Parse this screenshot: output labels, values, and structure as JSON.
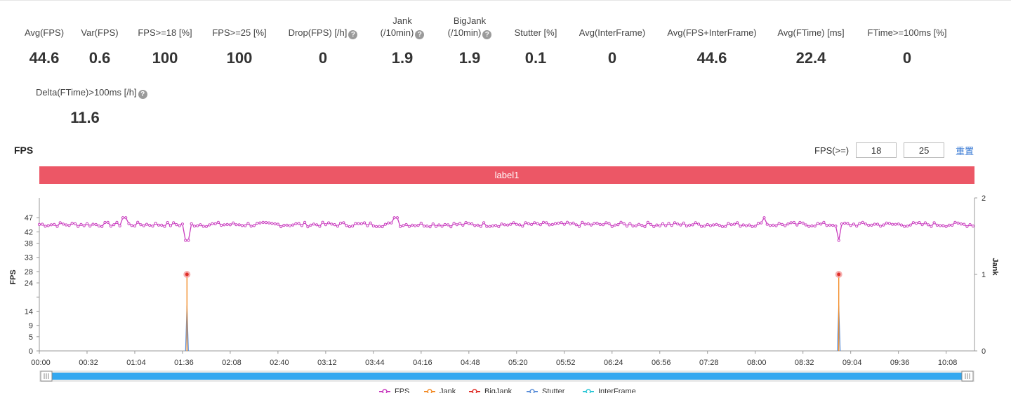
{
  "metrics": [
    {
      "label": "Avg(FPS)",
      "value": "44.6",
      "help": false
    },
    {
      "label": "Var(FPS)",
      "value": "0.6",
      "help": false
    },
    {
      "label": "FPS>=18 [%]",
      "value": "100",
      "help": false
    },
    {
      "label": "FPS>=25 [%]",
      "value": "100",
      "help": false
    },
    {
      "label": "Drop(FPS) [/h]",
      "value": "0",
      "help": true
    },
    {
      "label": "Jank",
      "label2": "(/10min)",
      "value": "1.9",
      "help": true
    },
    {
      "label": "BigJank",
      "label2": "(/10min)",
      "value": "1.9",
      "help": true
    },
    {
      "label": "Stutter [%]",
      "value": "0.1",
      "help": false
    },
    {
      "label": "Avg(InterFrame)",
      "value": "0",
      "help": false
    },
    {
      "label": "Avg(FPS+InterFrame)",
      "value": "44.6",
      "help": false
    },
    {
      "label": "Avg(FTime) [ms]",
      "value": "22.4",
      "help": false
    },
    {
      "label": "FTime>=100ms [%]",
      "value": "0",
      "help": false
    },
    {
      "label": "Delta(FTime)>100ms [/h]",
      "value": "11.6",
      "help": true
    }
  ],
  "help_icon": "question-circle-icon",
  "section_title": "FPS",
  "fps_filter": {
    "label": "FPS(>=)",
    "value1": "18",
    "value2": "25",
    "reset_label": "重置"
  },
  "label_bar": {
    "text": "label1",
    "color": "#ec5766"
  },
  "chart_data": {
    "type": "line",
    "x_tick_labels": [
      "00:00",
      "00:32",
      "01:04",
      "01:36",
      "02:08",
      "02:40",
      "03:12",
      "03:44",
      "04:16",
      "04:48",
      "05:20",
      "05:52",
      "06:24",
      "06:56",
      "07:28",
      "08:00",
      "08:32",
      "09:04",
      "09:36",
      "10:08"
    ],
    "x_range_seconds": [
      0,
      627
    ],
    "ylabel": "FPS",
    "y_ticks": [
      0,
      5,
      9,
      14,
      19,
      24,
      28,
      33,
      38,
      42,
      47
    ],
    "y_tick_labels": [
      "0",
      "5",
      "9",
      "14",
      "",
      "24",
      "28",
      "33",
      "38",
      "42",
      "47"
    ],
    "ylim": [
      0,
      52
    ],
    "y2label": "Jank",
    "y2_ticks": [
      0,
      1,
      2
    ],
    "y2lim": [
      0,
      2
    ],
    "fps_baseline": 44.6,
    "fps_dips": [
      {
        "t": 99,
        "fps": 39
      },
      {
        "t": 536,
        "fps": 39
      }
    ],
    "fps_peaks": [
      {
        "t": 57,
        "fps": 47
      },
      {
        "t": 239,
        "fps": 47
      },
      {
        "t": 486,
        "fps": 47
      }
    ],
    "jank_events": [
      {
        "t": 99,
        "value": 1
      },
      {
        "t": 536,
        "value": 1
      }
    ],
    "stutter_events": [
      {
        "t": 99,
        "fps": 16
      },
      {
        "t": 536,
        "fps": 16
      }
    ],
    "series": [
      {
        "name": "FPS",
        "color": "#c93dbf"
      },
      {
        "name": "Jank",
        "color": "#f28c28"
      },
      {
        "name": "BigJank",
        "color": "#e0302a"
      },
      {
        "name": "Stutter",
        "color": "#5b8fd9"
      },
      {
        "name": "InterFrame",
        "color": "#2ec7d6"
      }
    ],
    "grid": false
  }
}
